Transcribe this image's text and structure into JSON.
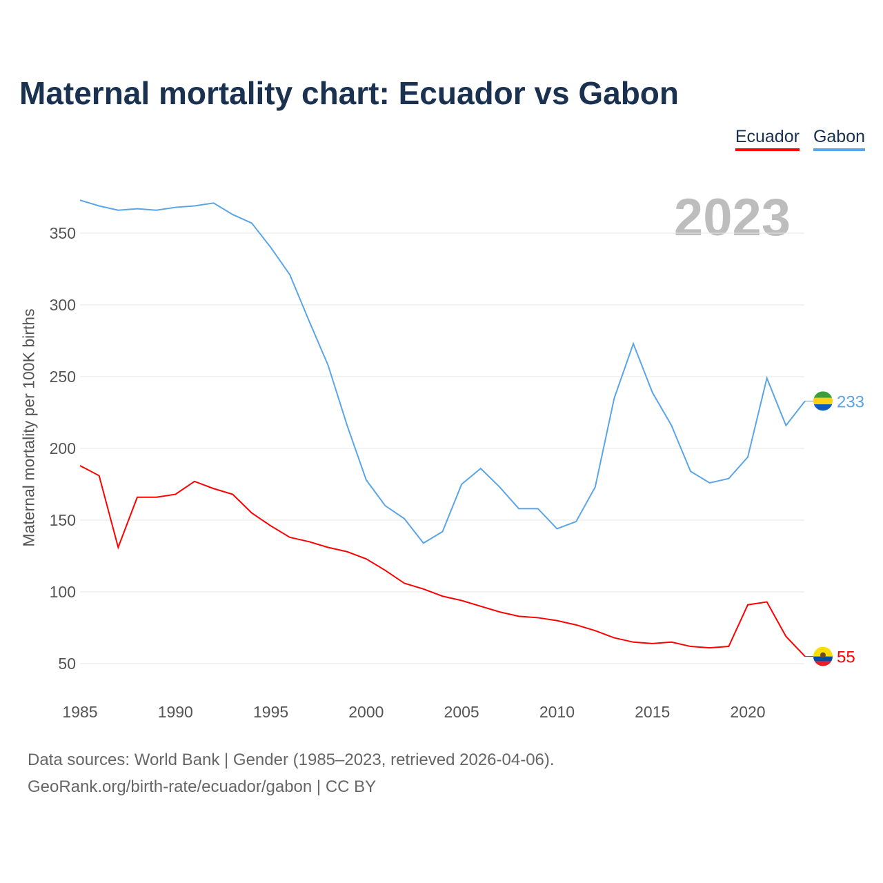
{
  "chart_data": {
    "type": "line",
    "title": "Maternal mortality chart: Ecuador vs Gabon",
    "ylabel": "Maternal mortality per 100K births",
    "xlabel": "",
    "year_label": "2023",
    "xlim": [
      1985,
      2023
    ],
    "ylim": [
      30,
      380
    ],
    "x_ticks": [
      1985,
      1990,
      1995,
      2000,
      2005,
      2010,
      2015,
      2020
    ],
    "y_ticks": [
      50,
      100,
      150,
      200,
      250,
      300,
      350
    ],
    "grid": true,
    "legend_position": "top-right",
    "x": [
      1985,
      1986,
      1987,
      1988,
      1989,
      1990,
      1991,
      1992,
      1993,
      1994,
      1995,
      1996,
      1997,
      1998,
      1999,
      2000,
      2001,
      2002,
      2003,
      2004,
      2005,
      2006,
      2007,
      2008,
      2009,
      2010,
      2011,
      2012,
      2013,
      2014,
      2015,
      2016,
      2017,
      2018,
      2019,
      2020,
      2021,
      2022,
      2023
    ],
    "series": [
      {
        "name": "Ecuador",
        "color": "#ff0000",
        "end_label": "55",
        "values": [
          188,
          181,
          131,
          166,
          166,
          168,
          177,
          172,
          168,
          155,
          146,
          138,
          135,
          131,
          128,
          123,
          115,
          106,
          102,
          97,
          94,
          90,
          86,
          83,
          82,
          80,
          77,
          73,
          68,
          65,
          64,
          65,
          62,
          61,
          62,
          91,
          93,
          69,
          55
        ]
      },
      {
        "name": "Gabon",
        "color": "#5aa5e8",
        "end_label": "233",
        "values": [
          373,
          369,
          366,
          367,
          366,
          368,
          369,
          371,
          363,
          357,
          340,
          321,
          289,
          258,
          216,
          178,
          160,
          151,
          134,
          142,
          175,
          186,
          173,
          158,
          158,
          144,
          149,
          173,
          235,
          273,
          239,
          216,
          184,
          176,
          179,
          194,
          249,
          216,
          233
        ]
      }
    ]
  },
  "footer": {
    "line1": "Data sources: World Bank | Gender (1985–2023, retrieved 2026-04-06).",
    "line2": "GeoRank.org/birth-rate/ecuador/gabon | CC BY"
  }
}
